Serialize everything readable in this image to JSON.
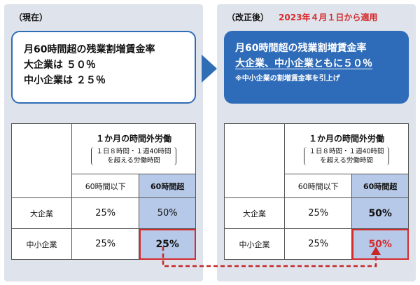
{
  "current": {
    "heading": "（現在）",
    "callout": {
      "line1": "月60時間超の残業割増賃金率",
      "line2": "大企業は ５０％",
      "line3": "中小企業は ２５％"
    },
    "table": {
      "title": "１か月の時間外労働",
      "subtitle_line1": "１日８時間・１週40時間",
      "subtitle_line2": "を超える労働時間",
      "col_under": "60時間以下",
      "col_over": "60時間超",
      "rows": [
        {
          "label": "大企業",
          "under": "25%",
          "over": "50%"
        },
        {
          "label": "中小企業",
          "under": "25%",
          "over": "25%"
        }
      ]
    }
  },
  "revised": {
    "heading": "（改正後）",
    "note": "2023年４月１日から適用",
    "callout": {
      "line1": "月60時間超の残業割増賃金率",
      "line2": "大企業、中小企業ともに５０％",
      "sub": "※中小企業の割増賃金率を引上げ"
    },
    "table": {
      "title": "１か月の時間外労働",
      "subtitle_line1": "１日８時間・１週40時間",
      "subtitle_line2": "を超える労働時間",
      "col_under": "60時間以下",
      "col_over": "60時間超",
      "rows": [
        {
          "label": "大企業",
          "under": "25%",
          "over": "50%"
        },
        {
          "label": "中小企業",
          "under": "25%",
          "over": "50%"
        }
      ]
    }
  },
  "colors": {
    "panel_bg": "#dfe3ec",
    "accent_blue": "#2e6bb8",
    "highlight_red": "#d62b2b",
    "cell_blue": "#b7c9e8"
  }
}
